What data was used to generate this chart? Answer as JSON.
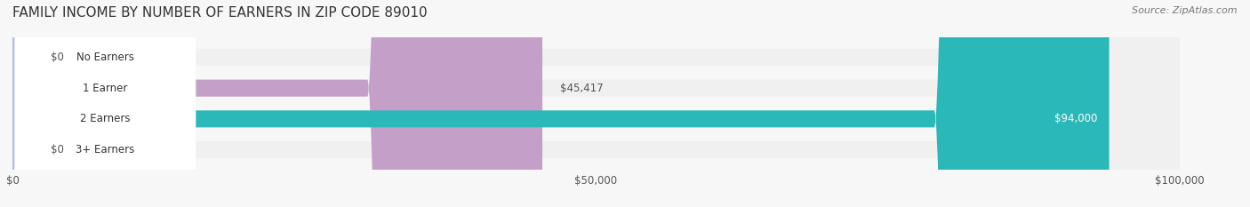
{
  "title": "FAMILY INCOME BY NUMBER OF EARNERS IN ZIP CODE 89010",
  "source": "Source: ZipAtlas.com",
  "categories": [
    "No Earners",
    "1 Earner",
    "2 Earners",
    "3+ Earners"
  ],
  "values": [
    0,
    45417,
    94000,
    0
  ],
  "max_value": 100000,
  "bar_colors": [
    "#a8b8d8",
    "#c4a0c8",
    "#2ab8b8",
    "#b0b8e8"
  ],
  "bar_bg_color": "#f0f0f0",
  "label_colors": [
    "#555555",
    "#555555",
    "#ffffff",
    "#555555"
  ],
  "value_labels": [
    "$0",
    "$45,417",
    "$94,000",
    "$0"
  ],
  "x_ticks": [
    0,
    50000,
    100000
  ],
  "x_tick_labels": [
    "$0",
    "$50,000",
    "$100,000"
  ],
  "background_color": "#f7f7f7",
  "title_fontsize": 11,
  "bar_height": 0.55,
  "fig_width": 14.06,
  "fig_height": 2.33
}
